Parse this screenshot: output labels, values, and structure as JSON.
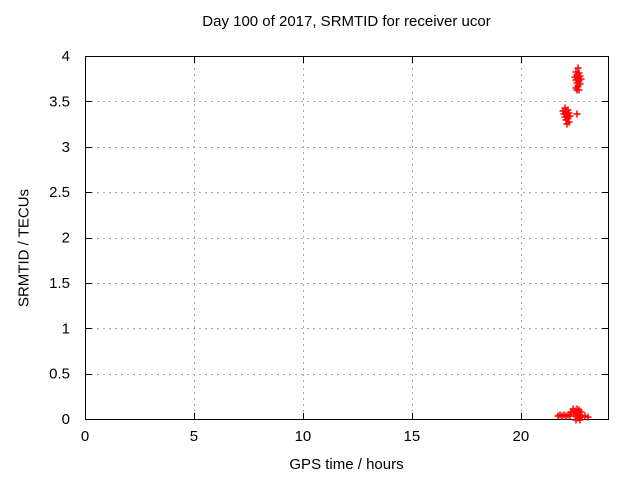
{
  "chart_data": {
    "type": "scatter",
    "title": "Day 100 of 2017, SRMTID for receiver ucor",
    "xlabel": "GPS time / hours",
    "ylabel": "SRMTID / TECUs",
    "xlim": [
      0,
      24
    ],
    "ylim": [
      0,
      4
    ],
    "xticks": [
      0,
      5,
      10,
      15,
      20
    ],
    "yticks": [
      0,
      0.5,
      1,
      1.5,
      2,
      2.5,
      3,
      3.5,
      4
    ],
    "grid": true,
    "grid_style": "dashed",
    "grid_color": "#a8a8a8",
    "border_color": "#000000",
    "background_color": "#ffffff",
    "legend": "none",
    "marker": "plus",
    "marker_color": "#ff0000",
    "series": [
      {
        "name": "SRMTID",
        "points": [
          [
            22.62,
            3.87
          ],
          [
            22.53,
            3.82
          ],
          [
            22.67,
            3.81
          ],
          [
            22.58,
            3.79
          ],
          [
            22.71,
            3.78
          ],
          [
            22.49,
            3.77
          ],
          [
            22.62,
            3.76
          ],
          [
            22.76,
            3.75
          ],
          [
            22.53,
            3.74
          ],
          [
            22.67,
            3.73
          ],
          [
            22.58,
            3.7
          ],
          [
            22.71,
            3.69
          ],
          [
            22.62,
            3.67
          ],
          [
            22.53,
            3.65
          ],
          [
            22.67,
            3.63
          ],
          [
            22.58,
            3.62
          ],
          [
            22.03,
            3.43
          ],
          [
            22.16,
            3.41
          ],
          [
            21.94,
            3.39
          ],
          [
            22.07,
            3.38
          ],
          [
            22.21,
            3.37
          ],
          [
            21.98,
            3.36
          ],
          [
            22.12,
            3.35
          ],
          [
            22.26,
            3.34
          ],
          [
            22.03,
            3.33
          ],
          [
            22.16,
            3.32
          ],
          [
            22.07,
            3.3
          ],
          [
            22.21,
            3.27
          ],
          [
            22.12,
            3.25
          ],
          [
            22.58,
            3.36
          ],
          [
            21.7,
            0.03
          ],
          [
            21.8,
            0.04
          ],
          [
            21.89,
            0.03
          ],
          [
            21.98,
            0.04
          ],
          [
            22.07,
            0.03
          ],
          [
            22.16,
            0.04
          ],
          [
            22.26,
            0.03
          ],
          [
            22.3,
            0.08
          ],
          [
            22.39,
            0.11
          ],
          [
            22.44,
            0.06
          ],
          [
            22.49,
            0.09
          ],
          [
            22.53,
            0.03
          ],
          [
            22.58,
            0.11
          ],
          [
            22.62,
            0.07
          ],
          [
            22.62,
            0.01
          ],
          [
            22.67,
            0.1
          ],
          [
            22.71,
            0.04
          ],
          [
            22.76,
            0.08
          ],
          [
            22.8,
            0.02
          ],
          [
            22.53,
            -0.01
          ],
          [
            22.71,
            -0.01
          ],
          [
            22.94,
            0.03
          ],
          [
            23.08,
            0.02
          ]
        ]
      }
    ]
  }
}
